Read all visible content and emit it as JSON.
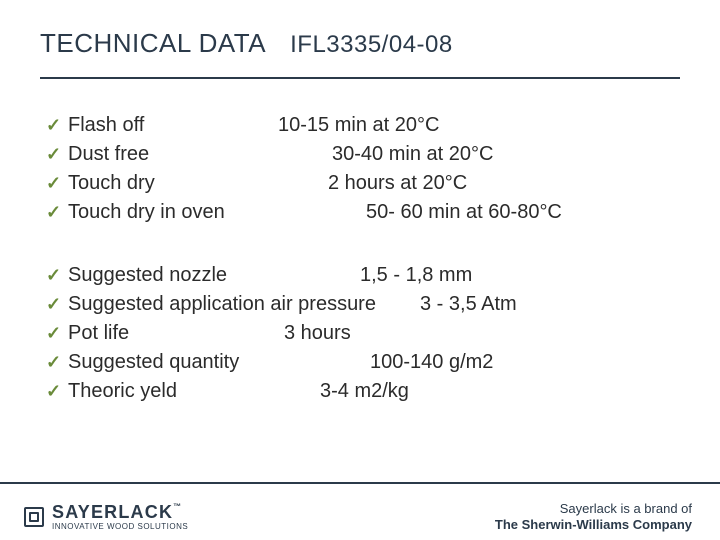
{
  "colors": {
    "text_primary": "#2b3a4a",
    "text_body": "#2b2b2b",
    "check_green": "#6a8b3a",
    "rule": "#2b3a4a",
    "background": "#ffffff"
  },
  "typography": {
    "title_fontsize_pt": 20,
    "body_fontsize_pt": 15,
    "footer_brand_fontsize_pt": 10
  },
  "title": {
    "heading": "TECHNICAL DATA",
    "code": "IFL3335/04-08"
  },
  "specs_block1": [
    {
      "label": "Flash off",
      "value": "10-15 min at 20°C",
      "label_w": 210
    },
    {
      "label": "Dust free",
      "value": "30-40 min at 20°C",
      "label_w": 264
    },
    {
      "label": "Touch dry",
      "value": "2 hours at 20°C",
      "label_w": 260
    },
    {
      "label": "Touch dry in oven",
      "value": "50- 60 min at 60-80°C",
      "label_w": 298
    }
  ],
  "specs_block2": [
    {
      "label": "Suggested nozzle",
      "value": "1,5 - 1,8 mm",
      "label_w": 292
    },
    {
      "label": "Suggested application air pressure",
      "value": "3 - 3,5 Atm",
      "label_w": 352
    },
    {
      "label": "Pot life",
      "value": "3 hours",
      "label_w": 216
    },
    {
      "label": "Suggested quantity",
      "value": "100-140 g/m2",
      "label_w": 302
    },
    {
      "label": "Theoric yeld",
      "value": "3-4 m2/kg",
      "label_w": 252
    }
  ],
  "footer": {
    "logo_name": "SAYERLACK",
    "logo_tagline": "INNOVATIVE WOOD SOLUTIONS",
    "brand_line1": "Sayerlack is a brand of",
    "brand_line2": "The Sherwin-Williams Company"
  }
}
